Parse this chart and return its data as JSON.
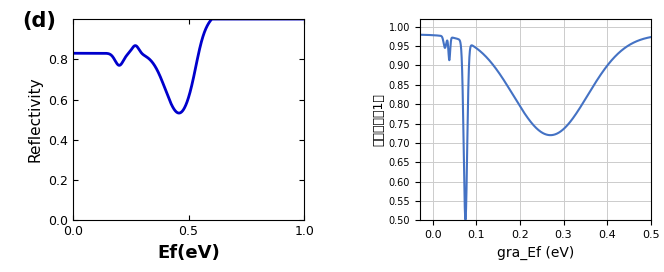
{
  "left_chart": {
    "label": "(d)",
    "xlabel": "Ef(eV)",
    "ylabel": "Reflectivity",
    "xlim": [
      0,
      1
    ],
    "ylim": [
      0,
      1
    ],
    "xticks": [
      0,
      0.5,
      1
    ],
    "yticks": [
      0,
      0.2,
      0.4,
      0.6,
      0.8
    ],
    "color": "#0000cc",
    "linewidth": 2.0,
    "xlabel_fontsize": 13,
    "ylabel_fontsize": 11,
    "label_fontsize": 15,
    "label_fontweight": "bold"
  },
  "right_chart": {
    "xlabel": "gra_Ef (eV)",
    "ylabel": "滖反射率（1）",
    "xlim": [
      -0.03,
      0.5
    ],
    "ylim": [
      0.5,
      1.02
    ],
    "xticks": [
      0,
      0.1,
      0.2,
      0.3,
      0.4,
      0.5
    ],
    "yticks": [
      0.5,
      0.55,
      0.6,
      0.65,
      0.7,
      0.75,
      0.8,
      0.85,
      0.9,
      0.95,
      1.0
    ],
    "color": "#4472c4",
    "linewidth": 1.5,
    "xlabel_fontsize": 10,
    "ylabel_fontsize": 9,
    "grid": true,
    "grid_color": "#cccccc"
  }
}
